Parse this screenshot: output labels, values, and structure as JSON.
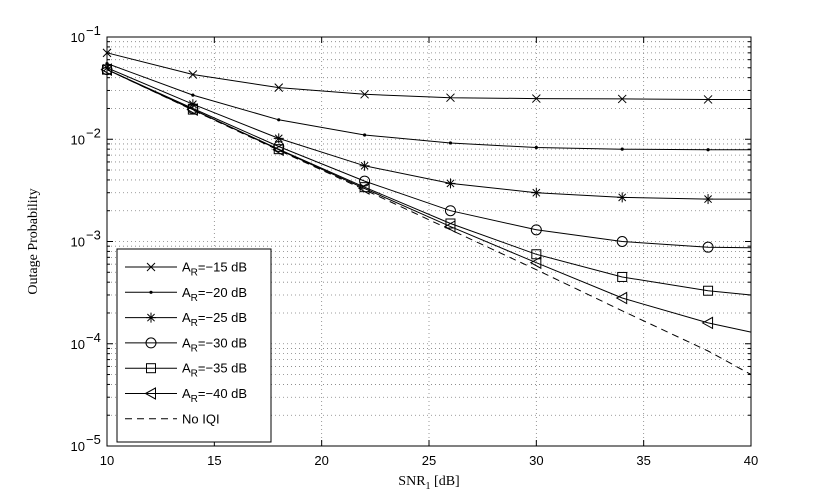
{
  "chart_data": {
    "type": "line",
    "title": "",
    "xlabel": "SNR",
    "xlabel_sub": "1",
    "xlabel_unit": " [dB]",
    "ylabel": "Outage Probability",
    "yscale": "log",
    "xlim": [
      10,
      40
    ],
    "ylim": [
      1e-05,
      0.1
    ],
    "grid": true,
    "legend_position": "bottom-left",
    "x_ticks": [
      "10",
      "15",
      "20",
      "25",
      "30",
      "35",
      "40"
    ],
    "y_ticks": [
      {
        "base": "10",
        "exp": "−5"
      },
      {
        "base": "10",
        "exp": "−4"
      },
      {
        "base": "10",
        "exp": "−3"
      },
      {
        "base": "10",
        "exp": "−2"
      },
      {
        "base": "10",
        "exp": "−1"
      }
    ],
    "series": [
      {
        "name_main": "A",
        "name_sub": "R",
        "name_rest": "=−15 dB",
        "marker": "x",
        "dash": false,
        "x": [
          10,
          14,
          18,
          22,
          26,
          30,
          34,
          38,
          40
        ],
        "y": [
          0.07,
          0.043,
          0.032,
          0.0275,
          0.0255,
          0.025,
          0.0248,
          0.0245,
          0.0245
        ]
      },
      {
        "name_main": "A",
        "name_sub": "R",
        "name_rest": "=−20 dB",
        "marker": "dot",
        "dash": false,
        "x": [
          10,
          14,
          18,
          22,
          26,
          30,
          34,
          38,
          40
        ],
        "y": [
          0.055,
          0.027,
          0.0155,
          0.011,
          0.0092,
          0.0083,
          0.008,
          0.0079,
          0.0079
        ]
      },
      {
        "name_main": "A",
        "name_sub": "R",
        "name_rest": "=−25 dB",
        "marker": "star",
        "dash": false,
        "x": [
          10,
          14,
          18,
          22,
          26,
          30,
          34,
          38,
          40
        ],
        "y": [
          0.05,
          0.022,
          0.0102,
          0.0055,
          0.0037,
          0.003,
          0.0027,
          0.0026,
          0.0026
        ]
      },
      {
        "name_main": "A",
        "name_sub": "R",
        "name_rest": "=−30 dB",
        "marker": "circle",
        "dash": false,
        "x": [
          10,
          14,
          18,
          22,
          26,
          30,
          34,
          38,
          40
        ],
        "y": [
          0.048,
          0.02,
          0.0085,
          0.0039,
          0.002,
          0.0013,
          0.001,
          0.00088,
          0.00087
        ]
      },
      {
        "name_main": "A",
        "name_sub": "R",
        "name_rest": "=−35 dB",
        "marker": "square",
        "dash": false,
        "x": [
          10,
          14,
          18,
          22,
          26,
          30,
          34,
          38,
          40
        ],
        "y": [
          0.048,
          0.0195,
          0.008,
          0.0034,
          0.0015,
          0.00075,
          0.00045,
          0.00033,
          0.0003
        ]
      },
      {
        "name_main": "A",
        "name_sub": "R",
        "name_rest": "=−40 dB",
        "marker": "triangle-left",
        "dash": false,
        "x": [
          10,
          14,
          18,
          22,
          26,
          30,
          34,
          38,
          40
        ],
        "y": [
          0.048,
          0.0195,
          0.0079,
          0.0033,
          0.0014,
          0.00062,
          0.00028,
          0.00016,
          0.00013
        ]
      },
      {
        "name_main": "No IQI",
        "name_sub": "",
        "name_rest": "",
        "marker": "none",
        "dash": true,
        "x": [
          10,
          14,
          18,
          22,
          26,
          30,
          34,
          38,
          40
        ],
        "y": [
          0.048,
          0.0193,
          0.0078,
          0.0032,
          0.0013,
          0.00053,
          0.00021,
          8.5e-05,
          5e-05
        ]
      }
    ]
  },
  "colors": {
    "line": "#000000",
    "grid": "#7f7f7f",
    "background": "#ffffff"
  }
}
